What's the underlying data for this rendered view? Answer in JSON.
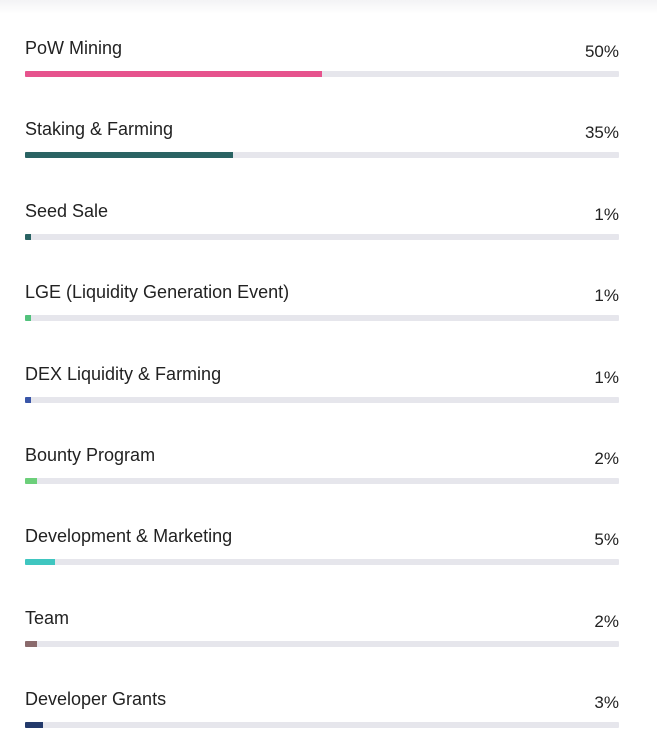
{
  "chart_data": {
    "type": "bar",
    "orientation": "horizontal",
    "title": "",
    "xlabel": "",
    "ylabel": "",
    "xlim": [
      0,
      100
    ],
    "categories": [
      "PoW Mining",
      "Staking & Farming",
      "Seed Sale",
      "LGE (Liquidity Generation Event)",
      "DEX Liquidity & Farming",
      "Bounty Program",
      "Development & Marketing",
      "Team",
      "Developer Grants"
    ],
    "values": [
      50,
      35,
      1,
      1,
      1,
      2,
      5,
      2,
      3
    ],
    "value_labels": [
      "50%",
      "35%",
      "1%",
      "1%",
      "1%",
      "2%",
      "5%",
      "2%",
      "3%"
    ],
    "colors": [
      "#e6538d",
      "#2a6363",
      "#2a6363",
      "#52c27c",
      "#3a56a8",
      "#6ccf7a",
      "#3fc6c0",
      "#8a6a6c",
      "#233a6b"
    ],
    "track_color": "#e6e6ec"
  }
}
